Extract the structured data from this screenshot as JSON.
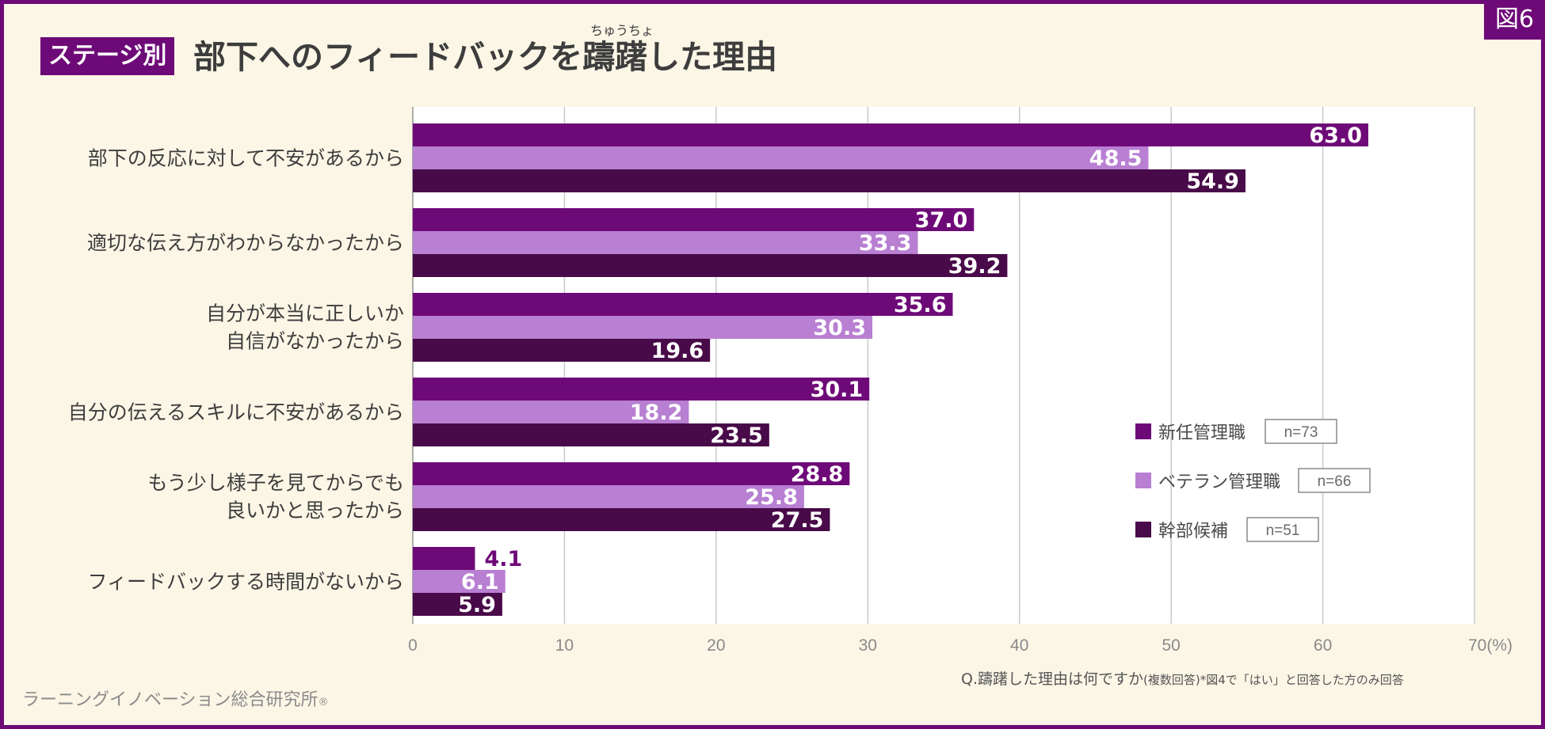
{
  "header": {
    "figure_no": "図6",
    "stage_badge": "ステージ別",
    "title": "部下へのフィードバックを躊躇した理由",
    "ruby": "ちゅうちょ"
  },
  "footer": {
    "organization": "ラーニングイノベーション総合研究所",
    "registered_mark": "®",
    "question": "Q.躊躇した理由は何ですか",
    "question_note": "(複数回答)*図4で「はい」と回答した方のみ回答"
  },
  "colors": {
    "accent": "#6e0a78",
    "background": "#fbf6e6",
    "series": [
      "#6e0a78",
      "#b87fd2",
      "#480a48"
    ]
  },
  "chart_data": {
    "type": "bar",
    "orientation": "horizontal",
    "categories": [
      [
        "部下の反応に対して不安があるから"
      ],
      [
        "適切な伝え方がわからなかったから"
      ],
      [
        "自分が本当に正しいか",
        "自信がなかったから"
      ],
      [
        "自分の伝えるスキルに不安があるから"
      ],
      [
        "もう少し様子を見てからでも",
        "良いかと思ったから"
      ],
      [
        "フィードバックする時間がないから"
      ]
    ],
    "series": [
      {
        "name": "新任管理職",
        "n": "n=73",
        "values": [
          63.0,
          37.0,
          35.6,
          30.1,
          28.8,
          4.1
        ]
      },
      {
        "name": "ベテラン管理職",
        "n": "n=66",
        "values": [
          48.5,
          33.3,
          30.3,
          18.2,
          25.8,
          6.1
        ]
      },
      {
        "name": "幹部候補",
        "n": "n=51",
        "values": [
          54.9,
          39.2,
          19.6,
          23.5,
          27.5,
          5.9
        ]
      }
    ],
    "xlim": [
      0,
      70
    ],
    "xticks": [
      "0",
      "10",
      "20",
      "30",
      "40",
      "50",
      "60",
      "70(%)"
    ],
    "grid": true,
    "legend_position": "lower-right"
  }
}
